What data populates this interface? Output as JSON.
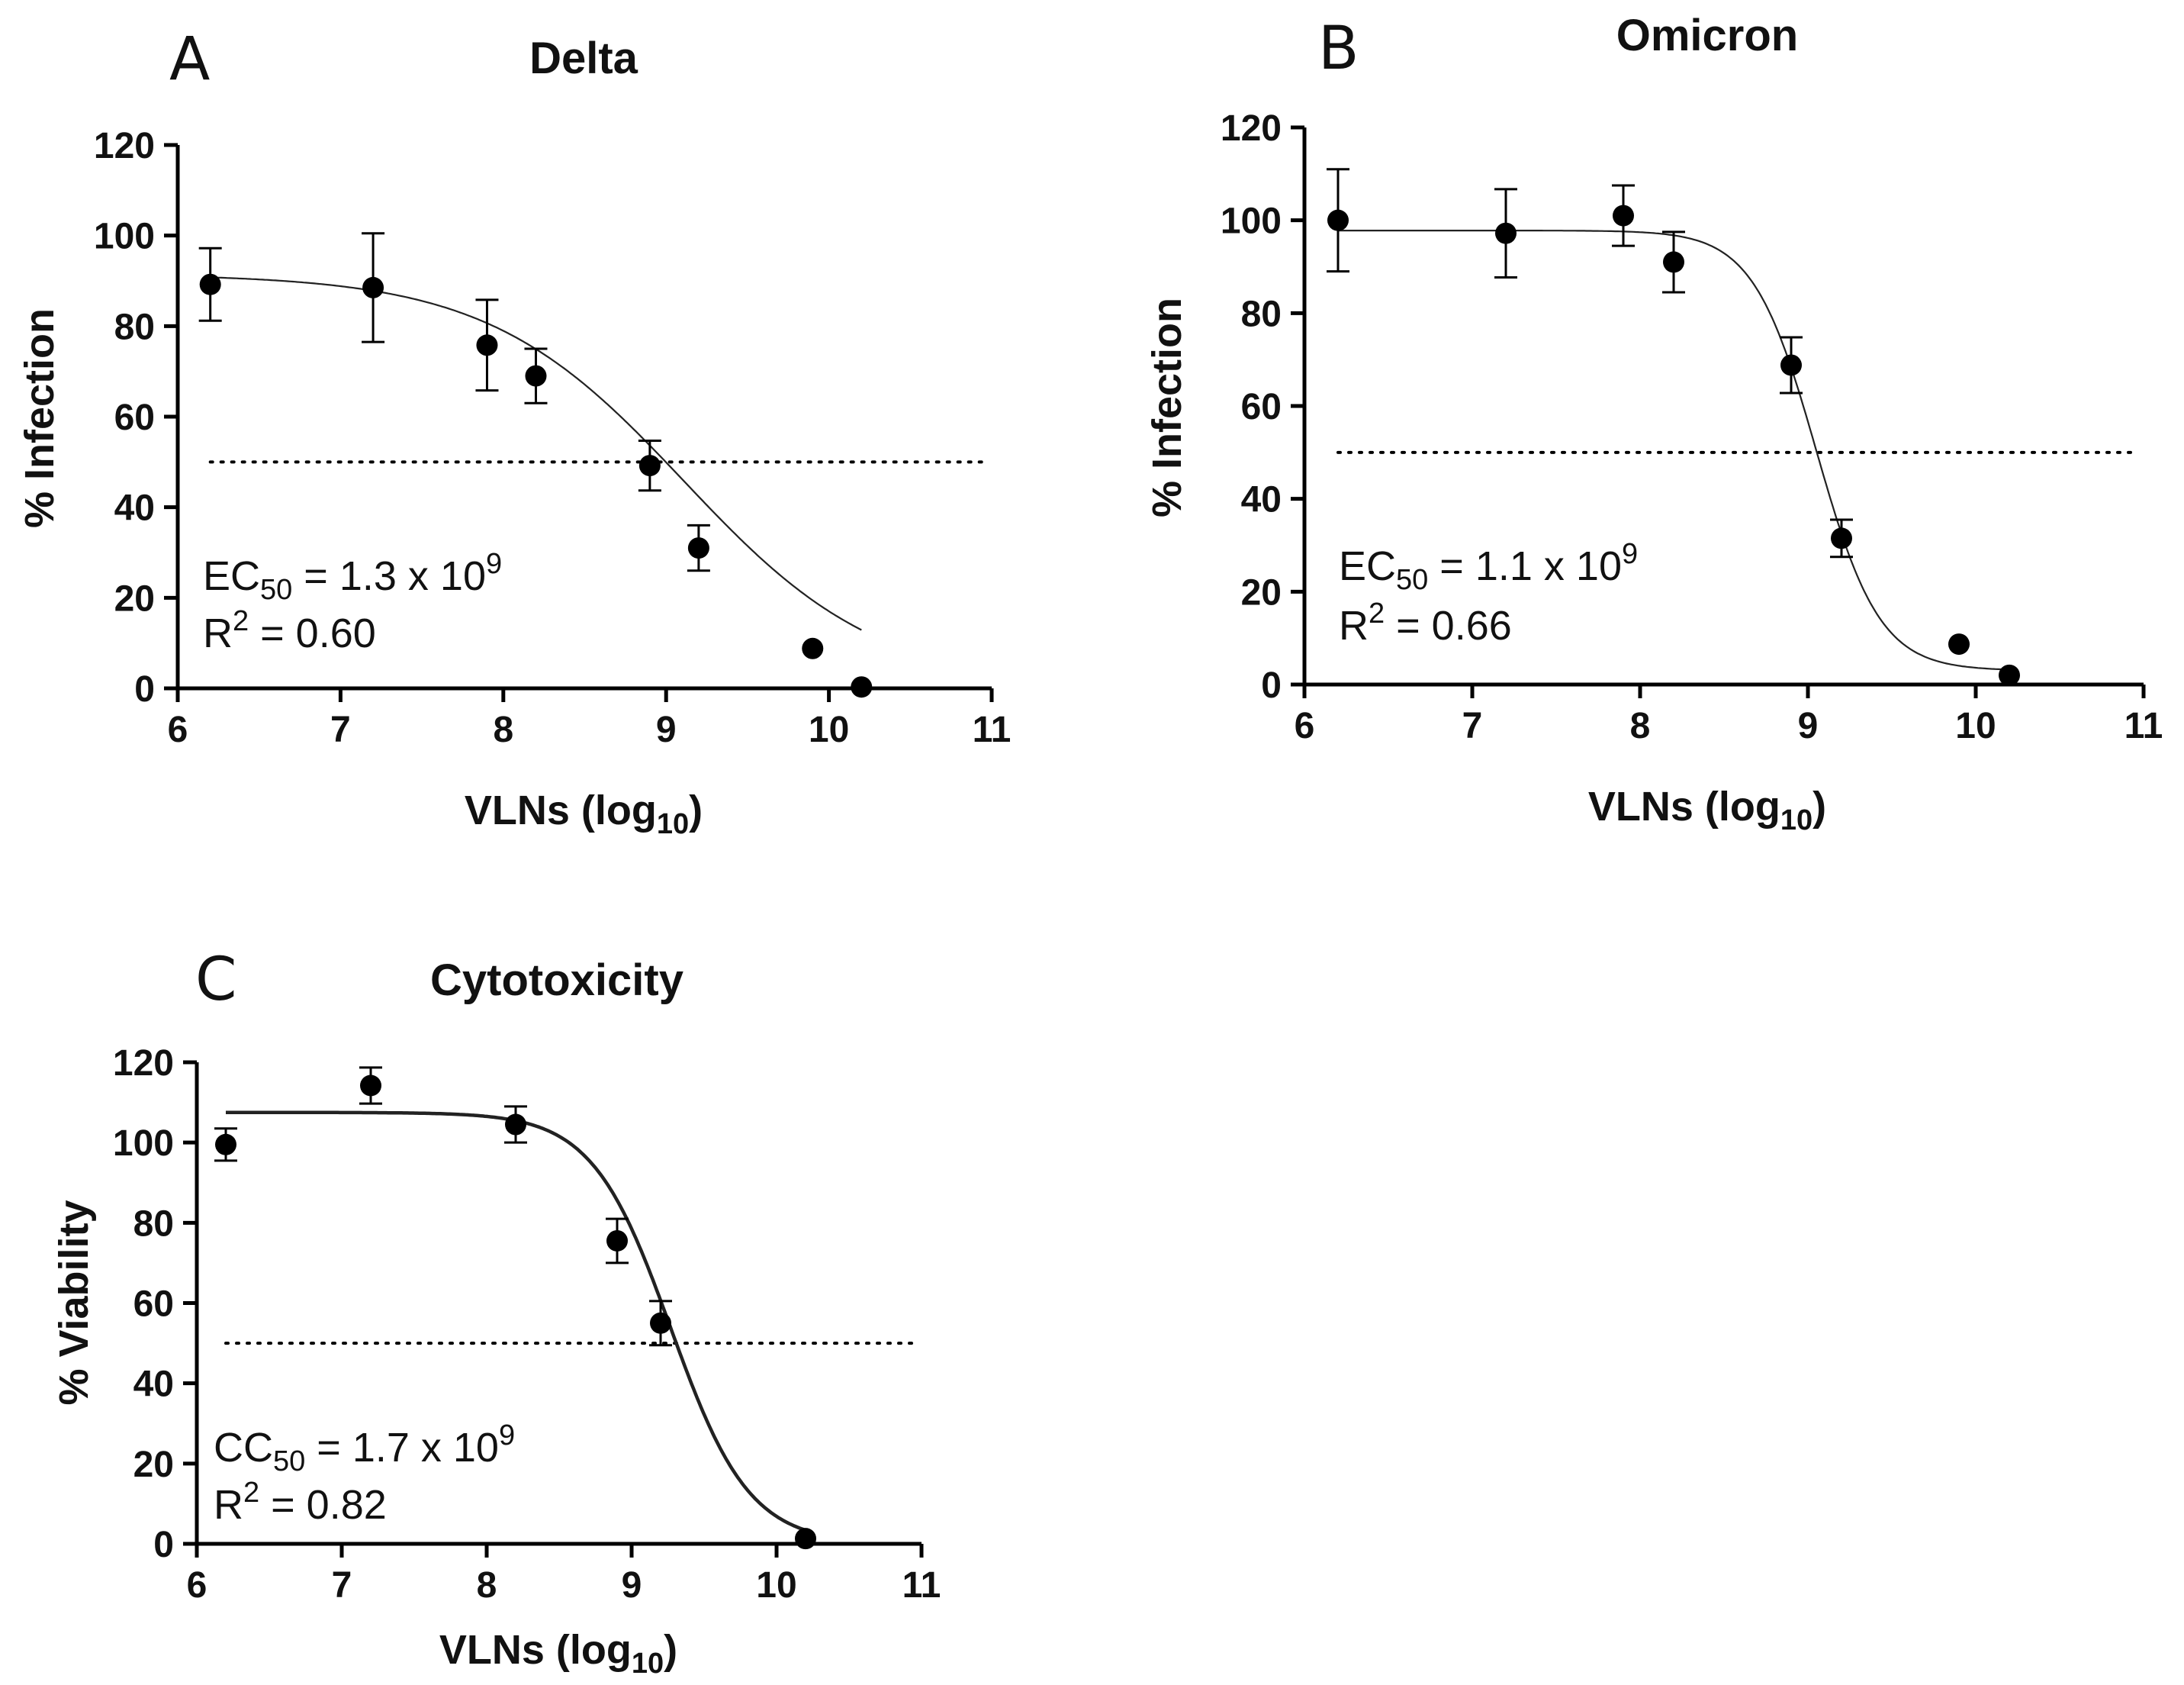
{
  "chart_data": [
    {
      "type": "scatter",
      "panel": "A",
      "title": "Delta",
      "xlabel": "VLNs (log10)",
      "xlabel_main": "VLNs (log",
      "xlabel_sub": "10",
      "xlabel_close": ")",
      "ylabel": "% Infection",
      "xlim": [
        6,
        11
      ],
      "ylim": [
        0,
        120
      ],
      "xticks": [
        "6",
        "7",
        "8",
        "9",
        "10",
        "11"
      ],
      "yticks": [
        "0",
        "20",
        "40",
        "60",
        "80",
        "100",
        "120"
      ],
      "points": [
        {
          "x": 6.2,
          "y": 89.2,
          "err": 8
        },
        {
          "x": 7.2,
          "y": 88.5,
          "err": 12
        },
        {
          "x": 7.9,
          "y": 75.8,
          "err": 10
        },
        {
          "x": 8.2,
          "y": 69.0,
          "err": 6
        },
        {
          "x": 8.9,
          "y": 49.2,
          "err": 5.5
        },
        {
          "x": 9.2,
          "y": 31.0,
          "err": 5
        },
        {
          "x": 9.9,
          "y": 8.8,
          "err": 0
        },
        {
          "x": 10.2,
          "y": 0.3,
          "err": 0
        }
      ],
      "fit": {
        "bottom": 0,
        "top": 91.5,
        "logEC50": 9.11,
        "hill": 0.72,
        "x_start": 6.2,
        "x_end": 10.2
      },
      "reference_line_y": 50,
      "annotation": {
        "label": "EC",
        "sub": "50",
        "value": " = 1.3 x 10",
        "exp": "9",
        "r2_label": "R",
        "r2_exp": "2",
        "r2_value": " = 0.60"
      }
    },
    {
      "type": "scatter",
      "panel": "B",
      "title": "Omicron",
      "xlabel": "VLNs (log10)",
      "xlabel_main": "VLNs (log",
      "xlabel_sub": "10",
      "xlabel_close": ")",
      "ylabel": "% Infection",
      "xlim": [
        6,
        11
      ],
      "ylim": [
        0,
        120
      ],
      "xticks": [
        "6",
        "7",
        "8",
        "9",
        "10",
        "11"
      ],
      "yticks": [
        "0",
        "20",
        "40",
        "60",
        "80",
        "100",
        "120"
      ],
      "points": [
        {
          "x": 6.2,
          "y": 100.0,
          "err": 11
        },
        {
          "x": 7.2,
          "y": 97.2,
          "err": 9.5
        },
        {
          "x": 7.9,
          "y": 101.0,
          "err": 6.5
        },
        {
          "x": 8.2,
          "y": 91.0,
          "err": 6.5
        },
        {
          "x": 8.9,
          "y": 68.8,
          "err": 6
        },
        {
          "x": 9.2,
          "y": 31.5,
          "err": 4
        },
        {
          "x": 9.9,
          "y": 8.7,
          "err": 0
        },
        {
          "x": 10.2,
          "y": 2.0,
          "err": 0
        }
      ],
      "fit": {
        "bottom": 3,
        "top": 97.8,
        "logEC50": 9.05,
        "hill": 2.3,
        "x_start": 6.2,
        "x_end": 10.2
      },
      "reference_line_y": 50,
      "annotation": {
        "label": "EC",
        "sub": "50",
        "value": " = 1.1 x 10",
        "exp": "9",
        "r2_label": "R",
        "r2_exp": "2",
        "r2_value": " = 0.66"
      }
    },
    {
      "type": "scatter",
      "panel": "C",
      "title": "Cytotoxicity",
      "xlabel": "VLNs (log10)",
      "xlabel_main": "VLNs (log",
      "xlabel_sub": "10",
      "xlabel_close": ")",
      "ylabel": "% Viability",
      "xlim": [
        6,
        11
      ],
      "ylim": [
        0,
        120
      ],
      "xticks": [
        "6",
        "7",
        "8",
        "9",
        "10",
        "11"
      ],
      "yticks": [
        "0",
        "20",
        "40",
        "60",
        "80",
        "100",
        "120"
      ],
      "points": [
        {
          "x": 6.2,
          "y": 99.5,
          "err": 4
        },
        {
          "x": 7.2,
          "y": 114.2,
          "err": 4.5
        },
        {
          "x": 8.2,
          "y": 104.5,
          "err": 4.5
        },
        {
          "x": 8.9,
          "y": 75.5,
          "err": 5.5
        },
        {
          "x": 9.2,
          "y": 55.0,
          "err": 5.5
        },
        {
          "x": 10.2,
          "y": 1.3,
          "err": 0
        }
      ],
      "fit": {
        "bottom": 0,
        "top": 107.5,
        "logEC50": 9.27,
        "hill": 1.6,
        "x_start": 6.2,
        "x_end": 10.2
      },
      "reference_line_y": 50,
      "annotation": {
        "label": "CC",
        "sub": "50",
        "value": " = 1.7 x 10",
        "exp": "9",
        "r2_label": "R",
        "r2_exp": "2",
        "r2_value": " = 0.82"
      }
    }
  ]
}
